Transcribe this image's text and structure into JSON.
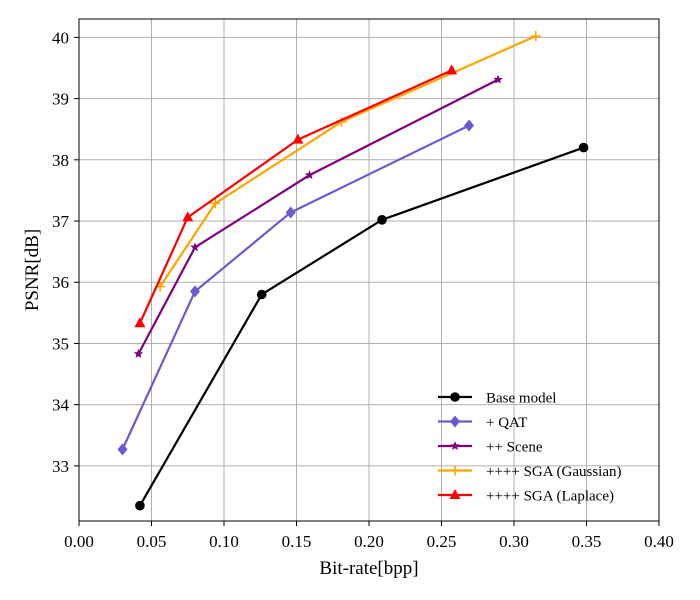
{
  "chart_data": {
    "type": "line",
    "title": "",
    "xlabel": "Bit-rate[bpp]",
    "ylabel": "PSNR[dB]",
    "xlim": [
      0.0,
      0.4
    ],
    "ylim": [
      32.1,
      40.3
    ],
    "x_ticks": [
      "0.00",
      "0.05",
      "0.10",
      "0.15",
      "0.20",
      "0.25",
      "0.30",
      "0.35",
      "0.40"
    ],
    "y_ticks": [
      "33",
      "34",
      "35",
      "36",
      "37",
      "38",
      "39",
      "40"
    ],
    "grid": true,
    "legend_position": "bottom-right",
    "series": [
      {
        "name": "Base model",
        "color": "#000000",
        "marker": "circle",
        "x": [
          0.042,
          0.126,
          0.209,
          0.348
        ],
        "y": [
          32.35,
          35.8,
          37.02,
          38.2
        ]
      },
      {
        "name": "+ QAT",
        "color": "#6a5acd",
        "marker": "diamond",
        "x": [
          0.03,
          0.08,
          0.146,
          0.269
        ],
        "y": [
          33.27,
          35.85,
          37.14,
          38.56
        ]
      },
      {
        "name": "++ Scene",
        "color": "#800080",
        "marker": "star",
        "x": [
          0.041,
          0.08,
          0.159,
          0.289
        ],
        "y": [
          34.83,
          36.57,
          37.75,
          39.31
        ]
      },
      {
        "name": "++++ SGA (Gaussian)",
        "color": "#ffa500",
        "marker": "plus",
        "x": [
          0.056,
          0.094,
          0.181,
          0.315
        ],
        "y": [
          35.93,
          37.29,
          38.62,
          40.02
        ]
      },
      {
        "name": "++++ SGA (Laplace)",
        "color": "#ff0000",
        "marker": "triangle",
        "x": [
          0.042,
          0.075,
          0.151,
          0.257
        ],
        "y": [
          35.33,
          37.06,
          38.33,
          39.46
        ]
      }
    ]
  }
}
